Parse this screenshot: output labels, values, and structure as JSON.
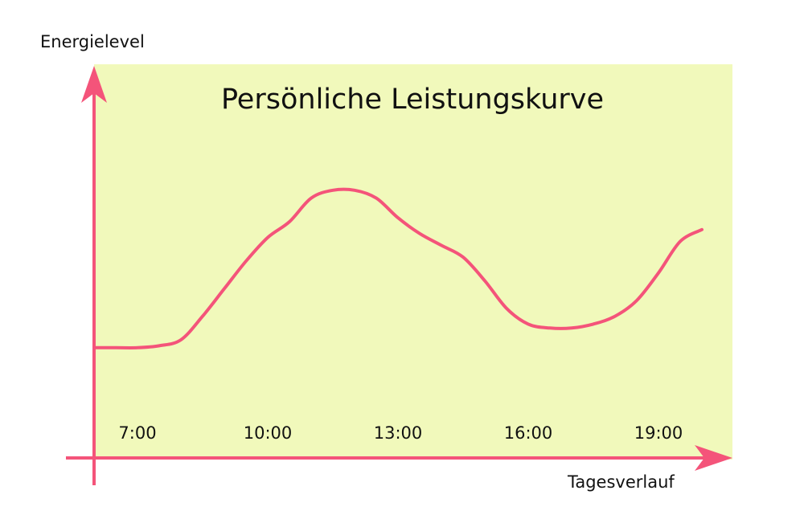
{
  "chart_data": {
    "type": "line",
    "title": "Persönliche Leistungskurve",
    "xlabel": "Tagesverlauf",
    "ylabel": "Energielevel",
    "categories": [
      "7:00",
      "10:00",
      "13:00",
      "16:00",
      "19:00"
    ],
    "x": [
      6,
      6.5,
      7,
      7.5,
      8,
      8.5,
      9,
      9.5,
      10,
      10.5,
      11,
      11.5,
      12,
      12.5,
      13,
      13.5,
      14,
      14.5,
      15,
      15.5,
      16,
      16.5,
      17,
      17.5,
      18,
      18.5,
      19,
      19.5,
      20
    ],
    "values": [
      28,
      28,
      28,
      28.5,
      30,
      36,
      43,
      50,
      56,
      60,
      66,
      68,
      68,
      66,
      61,
      57,
      54,
      51,
      45,
      38,
      34,
      33,
      33,
      34,
      36,
      40,
      47,
      55,
      58
    ],
    "xlim": [
      6,
      20
    ],
    "ylim": [
      0,
      100
    ],
    "grid": false,
    "colors": {
      "background": "#f1f9bb",
      "line": "#f4547a",
      "axis": "#f4547a",
      "text": "#111111"
    }
  }
}
